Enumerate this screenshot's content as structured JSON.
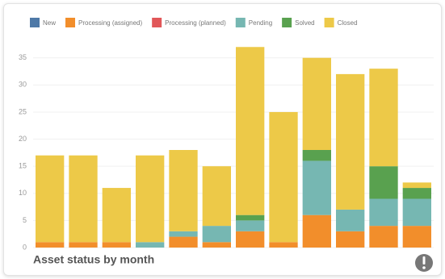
{
  "chart_data": {
    "type": "stacked-bar",
    "title": "Asset status by month",
    "ylim": [
      0,
      36
    ],
    "yticks": [
      0,
      5,
      10,
      15,
      20,
      25,
      30,
      35
    ],
    "grid": true,
    "series": [
      {
        "name": "New",
        "color": "#4e79a7",
        "values": [
          0,
          0,
          0,
          0,
          0,
          0,
          0,
          0,
          0,
          0,
          0,
          0
        ]
      },
      {
        "name": "Processing (assigned)",
        "color": "#f28e2b",
        "values": [
          1,
          1,
          1,
          0,
          2,
          1,
          3,
          1,
          6,
          3,
          4,
          4
        ]
      },
      {
        "name": "Processing (planned)",
        "color": "#e15759",
        "values": [
          0,
          0,
          0,
          0,
          0,
          0,
          0,
          0,
          0,
          0,
          0,
          0
        ]
      },
      {
        "name": "Pending",
        "color": "#76b7b2",
        "values": [
          0,
          0,
          0,
          1,
          1,
          3,
          2,
          0,
          10,
          4,
          5,
          5
        ]
      },
      {
        "name": "Solved",
        "color": "#59a14f",
        "values": [
          0,
          0,
          0,
          0,
          0,
          0,
          1,
          0,
          2,
          0,
          6,
          2
        ]
      },
      {
        "name": "Closed",
        "color": "#edc948",
        "values": [
          16,
          16,
          10,
          16,
          15,
          11,
          31,
          24,
          17,
          25,
          18,
          1
        ]
      }
    ]
  }
}
